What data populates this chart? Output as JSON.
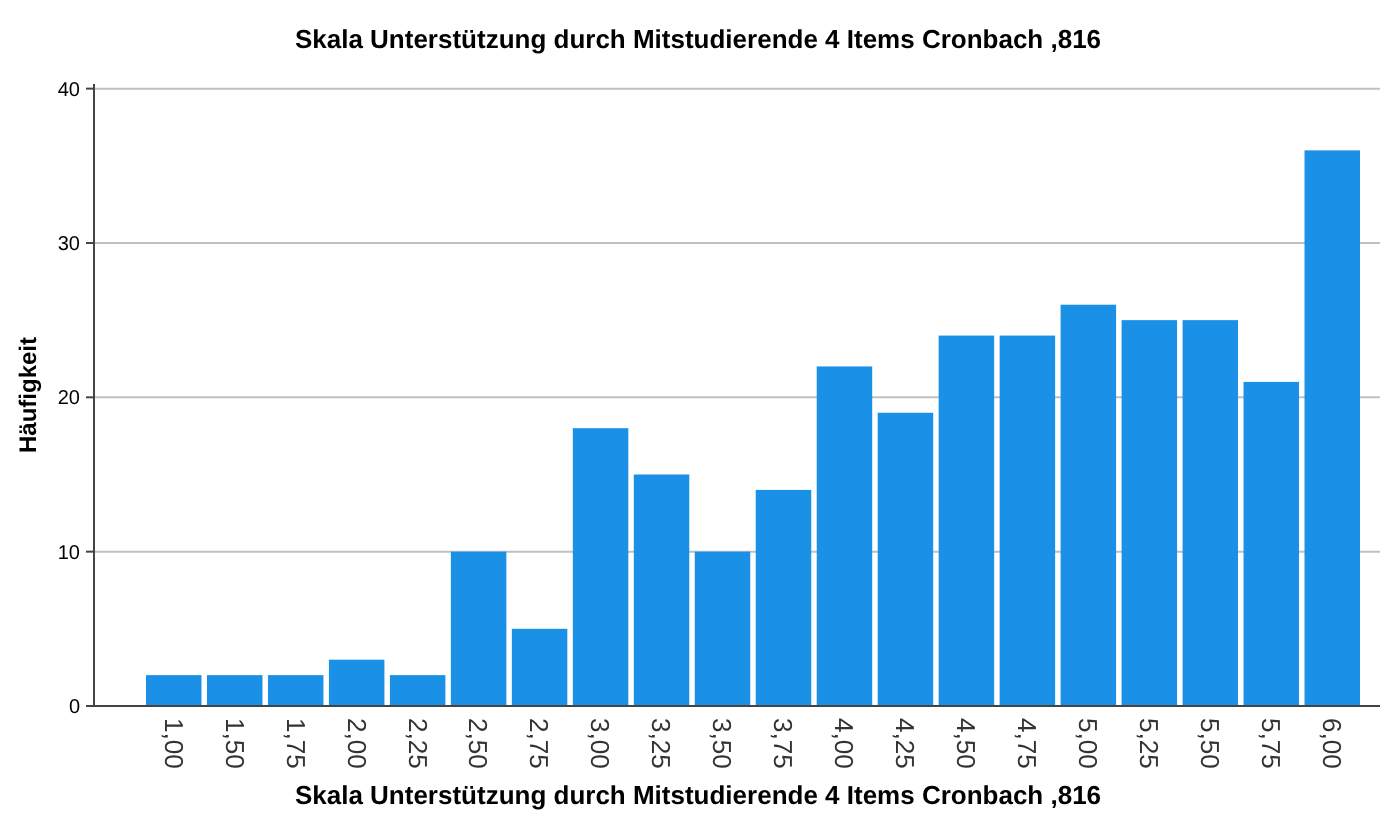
{
  "chart_data": {
    "type": "bar",
    "title": "Skala Unterstützung durch Mitstudierende 4 Items Cronbach ,816",
    "xlabel": "Skala Unterstützung durch Mitstudierende 4 Items Cronbach ,816",
    "ylabel": "Häufigkeit",
    "categories": [
      "1,00",
      "1,50",
      "1,75",
      "2,00",
      "2,25",
      "2,50",
      "2,75",
      "3,00",
      "3,25",
      "3,50",
      "3,75",
      "4,00",
      "4,25",
      "4,50",
      "4,75",
      "5,00",
      "5,25",
      "5,50",
      "5,75",
      "6,00"
    ],
    "values": [
      2,
      2,
      2,
      3,
      2,
      10,
      5,
      18,
      15,
      10,
      14,
      22,
      19,
      24,
      24,
      26,
      25,
      25,
      21,
      36
    ],
    "color": "#1a90e6",
    "ylim": [
      0,
      40.3
    ],
    "yticks": [
      0,
      10,
      20,
      30,
      40
    ],
    "grid": "y"
  }
}
